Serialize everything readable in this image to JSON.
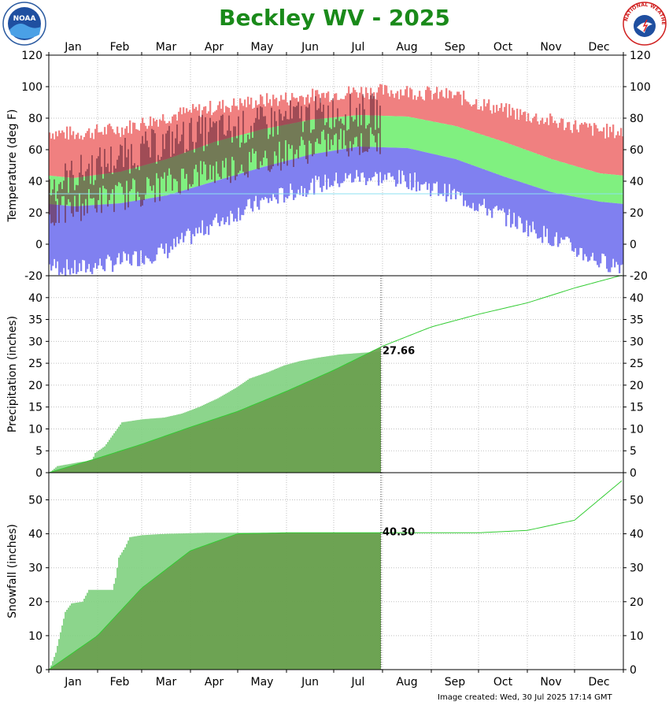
{
  "header": {
    "title": "Beckley WV - 2025",
    "footer": "Image created: Wed, 30 Jul 2025 17:14 GMT"
  },
  "logos": {
    "left": {
      "text": "NOAA",
      "icon": "noaa-logo-icon"
    },
    "right": {
      "text": "NATIONAL WEATHER SERVICE",
      "icon": "nws-logo-icon"
    }
  },
  "colors": {
    "record_high": "#f08080",
    "normal": "#80f080",
    "record_low": "#8080f0",
    "actual": "#6b2a3a",
    "cumulative_fill": "#6a9e4e",
    "normal_line": "#33cc33",
    "grid": "#c0c0c0"
  },
  "chart_data": [
    {
      "type": "area",
      "name": "temperature",
      "months": [
        "Jan",
        "Feb",
        "Mar",
        "Apr",
        "May",
        "Jun",
        "Jul",
        "Aug",
        "Sep",
        "Oct",
        "Nov",
        "Dec"
      ],
      "ylabel": "Temperature (deg F)",
      "ylim": [
        -20,
        120
      ],
      "yticks": [
        -20,
        0,
        20,
        40,
        60,
        80,
        100,
        120
      ],
      "grid": true,
      "normal_high_monthly": [
        42,
        46,
        54,
        65,
        73,
        79,
        82,
        81,
        75,
        65,
        54,
        45
      ],
      "normal_low_monthly": [
        24,
        26,
        31,
        40,
        49,
        57,
        62,
        61,
        54,
        43,
        33,
        27
      ],
      "record_high_monthly": [
        70,
        73,
        81,
        87,
        91,
        94,
        97,
        97,
        94,
        85,
        78,
        72
      ],
      "record_low_monthly": [
        -16,
        -11,
        -4,
        14,
        27,
        37,
        43,
        41,
        31,
        18,
        4,
        -11
      ],
      "actual_through_day": 211,
      "actual_high_monthly": [
        37,
        50,
        60,
        70,
        73,
        80,
        84
      ],
      "actual_low_monthly": [
        18,
        28,
        34,
        44,
        50,
        58,
        65
      ]
    },
    {
      "type": "area",
      "name": "precipitation",
      "ylabel": "Precipitation (inches)",
      "ylim": [
        0,
        45
      ],
      "yticks": [
        0,
        5,
        10,
        15,
        20,
        25,
        30,
        35,
        40
      ],
      "grid": true,
      "annotation": "27.66",
      "observed_cumulative": [
        {
          "x": 1,
          "y": 0
        },
        {
          "x": 6,
          "y": 1.5
        },
        {
          "x": 14,
          "y": 2.0
        },
        {
          "x": 20,
          "y": 2.4
        },
        {
          "x": 28,
          "y": 2.8
        },
        {
          "x": 30,
          "y": 4.5
        },
        {
          "x": 36,
          "y": 6.0
        },
        {
          "x": 42,
          "y": 9.0
        },
        {
          "x": 47,
          "y": 11.5
        },
        {
          "x": 60,
          "y": 12.2
        },
        {
          "x": 74,
          "y": 12.6
        },
        {
          "x": 85,
          "y": 13.5
        },
        {
          "x": 96,
          "y": 15.0
        },
        {
          "x": 108,
          "y": 17.0
        },
        {
          "x": 120,
          "y": 19.5
        },
        {
          "x": 128,
          "y": 21.5
        },
        {
          "x": 140,
          "y": 23.0
        },
        {
          "x": 150,
          "y": 24.5
        },
        {
          "x": 160,
          "y": 25.5
        },
        {
          "x": 172,
          "y": 26.3
        },
        {
          "x": 185,
          "y": 27.0
        },
        {
          "x": 200,
          "y": 27.4
        },
        {
          "x": 211,
          "y": 27.66
        }
      ],
      "normal_cumulative_monthly": [
        0,
        3.3,
        6.5,
        10.4,
        14.0,
        18.6,
        23.4,
        28.9,
        33.3,
        36.2,
        38.8,
        42.2,
        45.2
      ]
    },
    {
      "type": "area",
      "name": "snowfall",
      "ylabel": "Snowfall (inches)",
      "ylim": [
        0,
        58
      ],
      "yticks": [
        0,
        10,
        20,
        30,
        40,
        50
      ],
      "grid": true,
      "annotation": "40.30",
      "observed_cumulative": [
        {
          "x": 1,
          "y": 0
        },
        {
          "x": 5,
          "y": 5
        },
        {
          "x": 8,
          "y": 11
        },
        {
          "x": 11,
          "y": 17
        },
        {
          "x": 15,
          "y": 19.5
        },
        {
          "x": 22,
          "y": 20
        },
        {
          "x": 26,
          "y": 23.5
        },
        {
          "x": 41,
          "y": 23.5
        },
        {
          "x": 43,
          "y": 27
        },
        {
          "x": 45,
          "y": 33
        },
        {
          "x": 49,
          "y": 36
        },
        {
          "x": 52,
          "y": 39
        },
        {
          "x": 60,
          "y": 39.6
        },
        {
          "x": 75,
          "y": 40
        },
        {
          "x": 100,
          "y": 40.3
        },
        {
          "x": 211,
          "y": 40.3
        }
      ],
      "normal_cumulative_monthly": [
        0,
        10,
        24,
        35,
        40,
        40.3,
        40.3,
        40.3,
        40.3,
        40.3,
        41,
        44,
        56
      ]
    }
  ]
}
